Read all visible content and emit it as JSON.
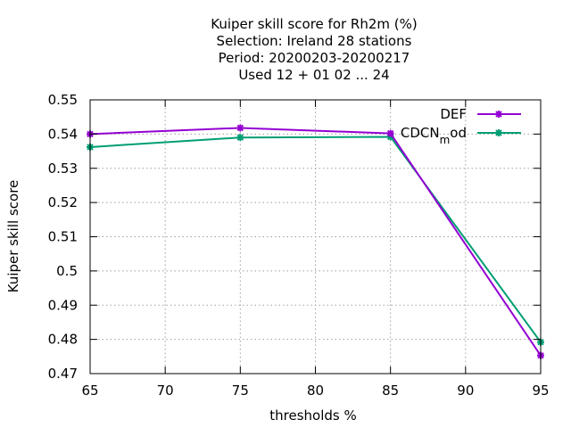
{
  "chart_data": {
    "type": "line",
    "title_lines": [
      "Kuiper skill score  for Rh2m (%)",
      "Selection: Ireland     28 stations",
      "Period: 20200203-20200217",
      "Used  12 + 01 02 ... 24"
    ],
    "xlabel": "thresholds %",
    "ylabel": "Kuiper skill score",
    "xlim": [
      65,
      95
    ],
    "ylim": [
      0.47,
      0.55
    ],
    "xticks": [
      65,
      70,
      75,
      80,
      85,
      90,
      95
    ],
    "yticks": [
      0.47,
      0.48,
      0.49,
      0.5,
      0.51,
      0.52,
      0.53,
      0.54,
      0.55
    ],
    "ytick_labels": [
      "0.47",
      "0.48",
      "0.49",
      "0.5",
      "0.51",
      "0.52",
      "0.53",
      "0.54",
      "0.55"
    ],
    "grid": true,
    "legend_position": "top-right",
    "series": [
      {
        "name": "DEF",
        "color": "#9400d3",
        "x": [
          65,
          75,
          85,
          95
        ],
        "y": [
          0.54,
          0.5418,
          0.5402,
          0.4753
        ]
      },
      {
        "name": "CDCN",
        "name_subscript": "m",
        "name_suffix": "od",
        "color": "#009e73",
        "x": [
          65,
          75,
          85,
          95
        ],
        "y": [
          0.5362,
          0.539,
          0.5392,
          0.4792
        ]
      }
    ]
  }
}
